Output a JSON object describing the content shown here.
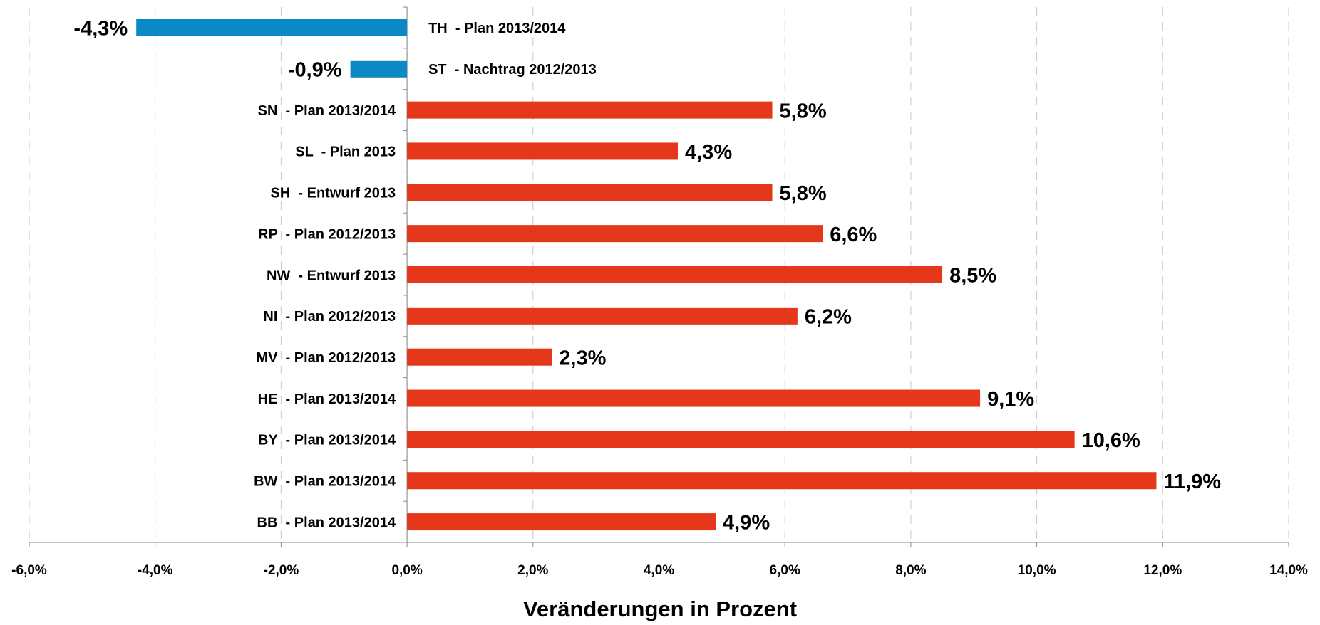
{
  "chart_data": {
    "type": "hbar",
    "xlabel": "Veränderungen in Prozent",
    "categories": [
      "TH  - Plan 2013/2014",
      "ST  - Nachtrag 2012/2013",
      "SN  - Plan 2013/2014",
      "SL  - Plan 2013",
      "SH  - Entwurf 2013",
      "RP  - Plan 2012/2013",
      "NW  - Entwurf 2013",
      "NI  - Plan 2012/2013",
      "MV  - Plan 2012/2013",
      "HE  - Plan 2013/2014",
      "BY  - Plan 2013/2014",
      "BW  - Plan 2013/2014",
      "BB  - Plan 2013/2014"
    ],
    "values": [
      -4.3,
      -0.9,
      5.8,
      4.3,
      5.8,
      6.6,
      8.5,
      6.2,
      2.3,
      9.1,
      10.6,
      11.9,
      4.9
    ],
    "value_labels": [
      "-4,3%",
      "-0,9%",
      "5,8%",
      "4,3%",
      "5,8%",
      "6,6%",
      "8,5%",
      "6,2%",
      "2,3%",
      "9,1%",
      "10,6%",
      "11,9%",
      "4,9%"
    ],
    "positive_color": "#e5371a",
    "negative_color": "#0a89c6",
    "xlim": [
      -6,
      14
    ],
    "xticks": [
      {
        "value": -6,
        "label": "-6,0%"
      },
      {
        "value": -4,
        "label": "-4,0%"
      },
      {
        "value": -2,
        "label": "-2,0%"
      },
      {
        "value": 0,
        "label": "0,0%"
      },
      {
        "value": 2,
        "label": "2,0%"
      },
      {
        "value": 4,
        "label": "4,0%"
      },
      {
        "value": 6,
        "label": "6,0%"
      },
      {
        "value": 8,
        "label": "8,0%"
      },
      {
        "value": 10,
        "label": "10,0%"
      },
      {
        "value": 12,
        "label": "12,0%"
      },
      {
        "value": 14,
        "label": "14,0%"
      }
    ],
    "grid": true
  }
}
